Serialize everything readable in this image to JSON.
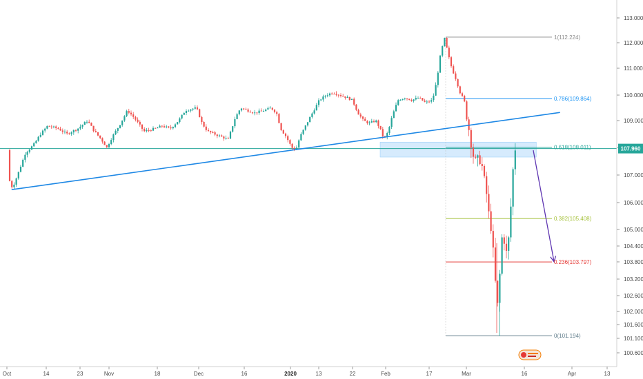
{
  "chart_data": {
    "type": "candlestick",
    "instrument": "",
    "current_price": "107.960",
    "y_axis": {
      "ticks": [
        "113.000",
        "112.000",
        "111.000",
        "110.000",
        "109.000",
        "108.000",
        "107.000",
        "106.000",
        "105.000",
        "104.400",
        "103.800",
        "103.200",
        "102.600",
        "102.000",
        "101.600",
        "101.100",
        "100.600"
      ]
    },
    "x_axis": {
      "ticks": [
        {
          "label": "Oct",
          "date": "2019-10-01"
        },
        {
          "label": "14",
          "date": "2019-10-14"
        },
        {
          "label": "23",
          "date": "2019-10-23"
        },
        {
          "label": "Nov",
          "date": "2019-11-01"
        },
        {
          "label": "18",
          "date": "2019-11-18"
        },
        {
          "label": "Dec",
          "date": "2019-12-02"
        },
        {
          "label": "16",
          "date": "2019-12-16"
        },
        {
          "label": "2020",
          "date": "2020-01-01"
        },
        {
          "label": "13",
          "date": "2020-01-13"
        },
        {
          "label": "22",
          "date": "2020-01-22"
        },
        {
          "label": "Feb",
          "date": "2020-02-03"
        },
        {
          "label": "17",
          "date": "2020-02-17"
        },
        {
          "label": "Mar",
          "date": "2020-03-02"
        },
        {
          "label": "16",
          "date": "2020-03-16"
        },
        {
          "label": "Apr",
          "date": "2020-04-01"
        },
        {
          "label": "13",
          "date": "2020-04-13"
        }
      ]
    },
    "fib_levels": [
      {
        "label": "1(112.224)",
        "price": 112.224,
        "color": "#8a8a8a"
      },
      {
        "label": "0.786(109.864)",
        "price": 109.864,
        "color": "#2196f3"
      },
      {
        "label": "0.618(108.011)",
        "price": 108.011,
        "color": "#26a69a"
      },
      {
        "label": "0.382(105.408)",
        "price": 105.408,
        "color": "#a5c13a"
      },
      {
        "label": "0.236(103.797)",
        "price": 103.797,
        "color": "#e53935"
      },
      {
        "label": "0(101.194)",
        "price": 101.194,
        "color": "#607d8b"
      }
    ],
    "horizontal_line": {
      "price": 107.96,
      "color": "#26a69a"
    },
    "trendline": {
      "start": {
        "date": "2019-10-03",
        "price": 106.47
      },
      "end": {
        "date": "2020-03-28",
        "price": 109.32
      },
      "color": "#1e88e5"
    },
    "zone": {
      "start_date": "2020-02-01",
      "end_date": "2020-03-20",
      "top": 108.2,
      "bottom": 107.65,
      "color": "#bbdefb"
    },
    "arrow": {
      "start": {
        "date": "2020-03-19",
        "price": 107.9
      },
      "end": {
        "date": "2020-03-26",
        "price": 103.8
      },
      "color": "#5e35b1"
    },
    "candles_up_color": "#26a69a",
    "candles_down_color": "#ef5350"
  }
}
